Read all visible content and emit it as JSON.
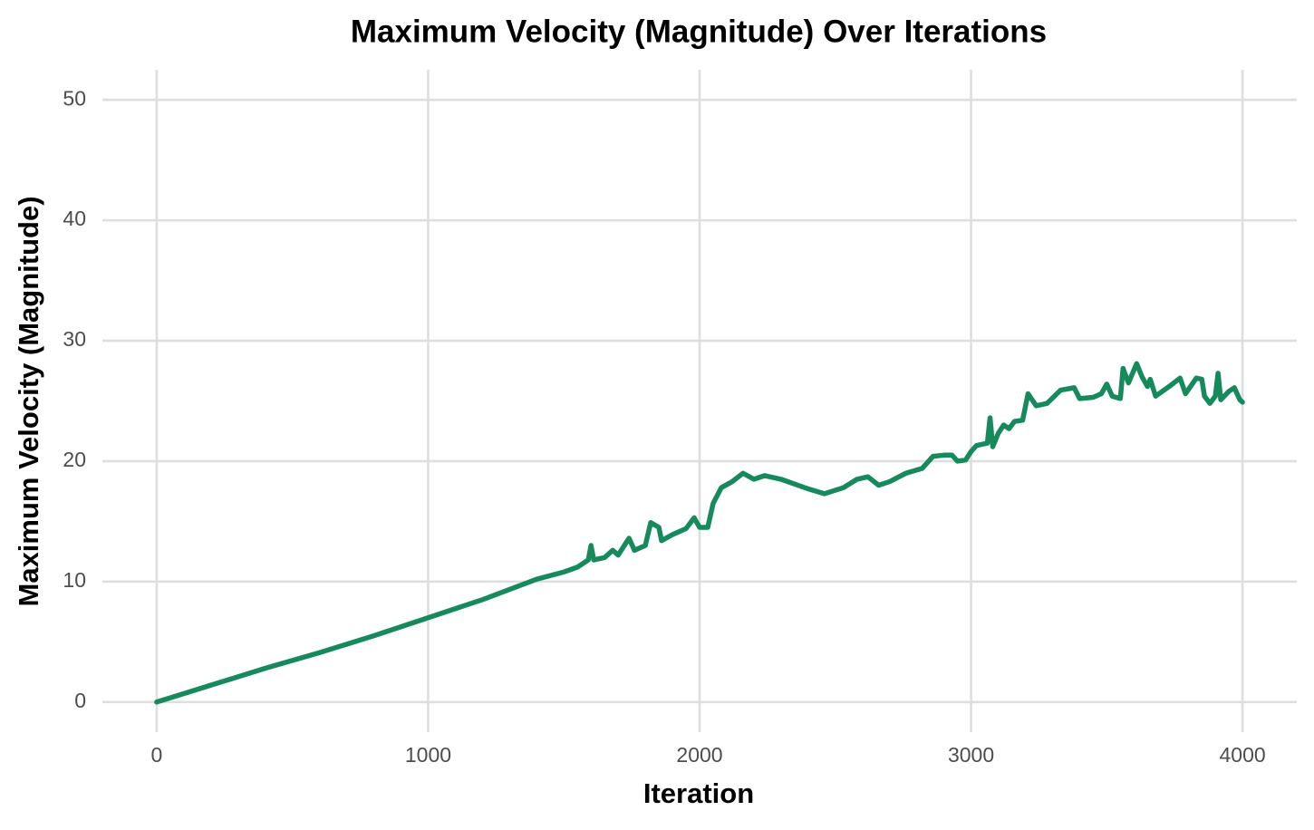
{
  "chart_data": {
    "type": "line",
    "title": "Maximum Velocity (Magnitude) Over Iterations",
    "x_label": "Iteration",
    "y_label": "Maximum Velocity (Magnitude)",
    "xlim": [
      -200,
      4200
    ],
    "ylim": [
      -2.5,
      52.5
    ],
    "xticks": [
      0,
      1000,
      2000,
      3000,
      4000
    ],
    "yticks": [
      0,
      10,
      20,
      30,
      40,
      50
    ],
    "grid": true,
    "x": [
      0,
      200,
      400,
      600,
      800,
      1000,
      1200,
      1400,
      1500,
      1550,
      1590,
      1600,
      1610,
      1650,
      1680,
      1700,
      1740,
      1760,
      1800,
      1820,
      1850,
      1860,
      1900,
      1950,
      1980,
      2000,
      2030,
      2050,
      2080,
      2120,
      2160,
      2200,
      2240,
      2300,
      2400,
      2460,
      2530,
      2580,
      2620,
      2660,
      2700,
      2760,
      2820,
      2860,
      2900,
      2930,
      2950,
      2980,
      3000,
      3020,
      3060,
      3070,
      3080,
      3100,
      3120,
      3140,
      3160,
      3190,
      3210,
      3240,
      3280,
      3330,
      3380,
      3400,
      3450,
      3480,
      3500,
      3520,
      3550,
      3560,
      3580,
      3610,
      3630,
      3650,
      3660,
      3680,
      3730,
      3770,
      3790,
      3830,
      3850,
      3860,
      3880,
      3900,
      3910,
      3920,
      3950,
      3970,
      3990,
      4000
    ],
    "series": [
      {
        "name": "Maximum Velocity",
        "color": "#178a5d",
        "values": [
          0,
          1.4,
          2.8,
          4.1,
          5.5,
          7.0,
          8.5,
          10.2,
          10.8,
          11.2,
          11.8,
          13.0,
          11.8,
          12.0,
          12.6,
          12.2,
          13.6,
          12.6,
          13.0,
          14.9,
          14.5,
          13.4,
          13.9,
          14.4,
          15.3,
          14.5,
          14.5,
          16.5,
          17.8,
          18.3,
          19.0,
          18.5,
          18.8,
          18.5,
          17.7,
          17.3,
          17.8,
          18.5,
          18.7,
          18.0,
          18.3,
          19.0,
          19.4,
          20.4,
          20.5,
          20.5,
          20.0,
          20.1,
          20.8,
          21.3,
          21.5,
          23.6,
          21.2,
          22.3,
          23.0,
          22.7,
          23.3,
          23.4,
          25.6,
          24.6,
          24.8,
          25.9,
          26.1,
          25.2,
          25.3,
          25.6,
          26.4,
          25.4,
          25.2,
          27.7,
          26.5,
          28.1,
          27.0,
          26.2,
          26.8,
          25.4,
          26.2,
          26.9,
          25.6,
          26.9,
          26.8,
          25.4,
          24.8,
          25.4,
          27.3,
          25.1,
          25.8,
          26.1,
          25.1,
          24.9
        ]
      }
    ]
  }
}
